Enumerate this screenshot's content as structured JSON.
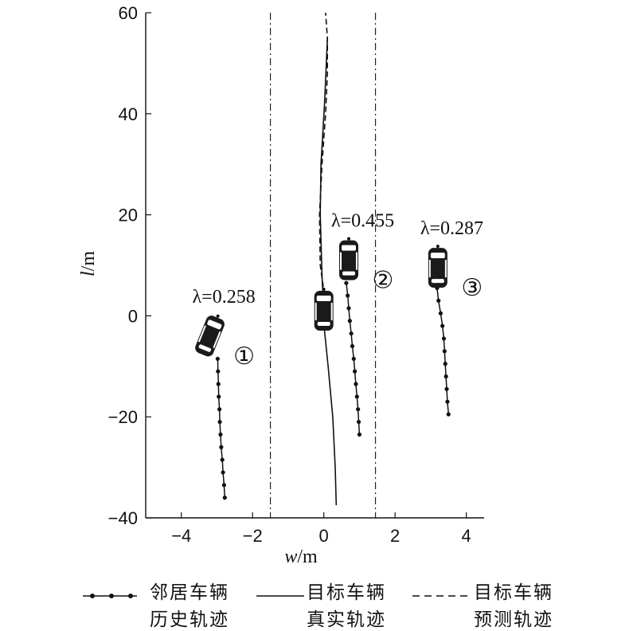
{
  "chart_data": {
    "type": "line",
    "xlabel_var": "w",
    "xlabel_unit": "/m",
    "ylabel_var": "l",
    "ylabel_unit": "/m",
    "xlim": [
      -5,
      4.5
    ],
    "ylim": [
      -40,
      60
    ],
    "xticks": [
      -4,
      -2,
      0,
      2,
      4
    ],
    "yticks": [
      -40,
      -20,
      0,
      20,
      40,
      60
    ],
    "lane_lines_x": [
      -1.5,
      1.45
    ],
    "vehicles": [
      {
        "id": "1",
        "label": "①",
        "lambda": "λ=0.258",
        "car_center": [
          -3.2,
          -4
        ],
        "heading_deg": 22,
        "history": [
          [
            -2.78,
            -36
          ],
          [
            -2.8,
            -33.5
          ],
          [
            -2.83,
            -31
          ],
          [
            -2.85,
            -28.5
          ],
          [
            -2.88,
            -26
          ],
          [
            -2.9,
            -23.5
          ],
          [
            -2.92,
            -21
          ],
          [
            -2.93,
            -18.5
          ],
          [
            -2.95,
            -16
          ],
          [
            -2.96,
            -13.5
          ],
          [
            -2.97,
            -11
          ],
          [
            -2.98,
            -8.5
          ]
        ]
      },
      {
        "id": "2",
        "label": "②",
        "lambda": "λ=0.455",
        "car_center": [
          0.7,
          11
        ],
        "heading_deg": 0,
        "history": [
          [
            1.0,
            -23.5
          ],
          [
            0.98,
            -21
          ],
          [
            0.96,
            -18.5
          ],
          [
            0.93,
            -16
          ],
          [
            0.9,
            -13.5
          ],
          [
            0.87,
            -11
          ],
          [
            0.84,
            -8.5
          ],
          [
            0.8,
            -6
          ],
          [
            0.77,
            -3.5
          ],
          [
            0.73,
            -1
          ],
          [
            0.7,
            1.5
          ],
          [
            0.67,
            4
          ],
          [
            0.63,
            6.5
          ]
        ]
      },
      {
        "id": "3",
        "label": "③",
        "lambda": "λ=0.287",
        "car_center": [
          3.2,
          9.5
        ],
        "heading_deg": 0,
        "history": [
          [
            3.5,
            -19.5
          ],
          [
            3.47,
            -17
          ],
          [
            3.45,
            -14.5
          ],
          [
            3.43,
            -12
          ],
          [
            3.41,
            -9.5
          ],
          [
            3.39,
            -7
          ],
          [
            3.37,
            -4.5
          ],
          [
            3.33,
            -2
          ],
          [
            3.28,
            0.5
          ],
          [
            3.22,
            3
          ],
          [
            3.18,
            5.5
          ]
        ]
      }
    ],
    "target": {
      "car_center": [
        0,
        1
      ],
      "true_trajectory": [
        [
          0.35,
          -37.5
        ],
        [
          0.32,
          -30
        ],
        [
          0.25,
          -20
        ],
        [
          0.12,
          -10
        ],
        [
          0.02,
          -3
        ],
        [
          -0.05,
          8
        ],
        [
          -0.1,
          20
        ],
        [
          -0.08,
          30
        ],
        [
          0.02,
          42
        ],
        [
          0.1,
          55
        ]
      ],
      "predicted_trajectory": [
        [
          0.02,
          4
        ],
        [
          -0.1,
          10
        ],
        [
          -0.12,
          20
        ],
        [
          -0.05,
          30
        ],
        [
          0.05,
          40
        ],
        [
          0.1,
          48
        ],
        [
          0.1,
          55
        ],
        [
          0.05,
          60
        ]
      ]
    },
    "legend": [
      {
        "key": "neighbor",
        "line1": "邻居车辆",
        "line2": "历史轨迹",
        "style": "dotted-markers"
      },
      {
        "key": "true",
        "line1": "目标车辆",
        "line2": "真实轨迹",
        "style": "solid"
      },
      {
        "key": "pred",
        "line1": "目标车辆",
        "line2": "预测轨迹",
        "style": "dashed"
      }
    ]
  }
}
